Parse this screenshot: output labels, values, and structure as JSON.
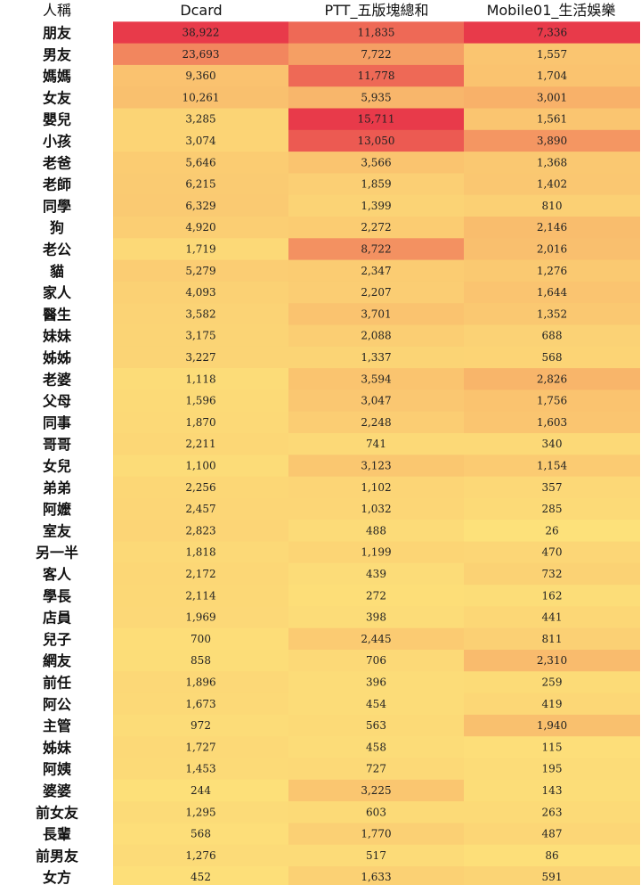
{
  "chart_data": {
    "type": "heatmap",
    "row_header": "人稱",
    "columns": [
      "Dcard",
      "PTT_五版塊總和",
      "Mobile01_生活娛樂"
    ],
    "rows": [
      "朋友",
      "男友",
      "媽媽",
      "女友",
      "嬰兒",
      "小孩",
      "老爸",
      "老師",
      "同學",
      "狗",
      "老公",
      "貓",
      "家人",
      "醫生",
      "妹妹",
      "姊姊",
      "老婆",
      "父母",
      "同事",
      "哥哥",
      "女兒",
      "弟弟",
      "阿嬤",
      "室友",
      "另一半",
      "客人",
      "學長",
      "店員",
      "兒子",
      "網友",
      "前任",
      "阿公",
      "主管",
      "姊妹",
      "阿姨",
      "婆婆",
      "前女友",
      "長輩",
      "前男友",
      "女方"
    ],
    "values": [
      [
        38922,
        11835,
        7336
      ],
      [
        23693,
        7722,
        1557
      ],
      [
        9360,
        11778,
        1704
      ],
      [
        10261,
        5935,
        3001
      ],
      [
        3285,
        15711,
        1561
      ],
      [
        3074,
        13050,
        3890
      ],
      [
        5646,
        3566,
        1368
      ],
      [
        6215,
        1859,
        1402
      ],
      [
        6329,
        1399,
        810
      ],
      [
        4920,
        2272,
        2146
      ],
      [
        1719,
        8722,
        2016
      ],
      [
        5279,
        2347,
        1276
      ],
      [
        4093,
        2207,
        1644
      ],
      [
        3582,
        3701,
        1352
      ],
      [
        3175,
        2088,
        688
      ],
      [
        3227,
        1337,
        568
      ],
      [
        1118,
        3594,
        2826
      ],
      [
        1596,
        3047,
        1756
      ],
      [
        1870,
        2248,
        1603
      ],
      [
        2211,
        741,
        340
      ],
      [
        1100,
        3123,
        1154
      ],
      [
        2256,
        1102,
        357
      ],
      [
        2457,
        1032,
        285
      ],
      [
        2823,
        488,
        26
      ],
      [
        1818,
        1199,
        470
      ],
      [
        2172,
        439,
        732
      ],
      [
        2114,
        272,
        162
      ],
      [
        1969,
        398,
        441
      ],
      [
        700,
        2445,
        811
      ],
      [
        858,
        706,
        2310
      ],
      [
        1896,
        396,
        259
      ],
      [
        1673,
        454,
        419
      ],
      [
        972,
        563,
        1940
      ],
      [
        1727,
        458,
        115
      ],
      [
        1453,
        727,
        195
      ],
      [
        244,
        3225,
        143
      ],
      [
        1295,
        603,
        263
      ],
      [
        568,
        1770,
        487
      ],
      [
        1276,
        517,
        86
      ],
      [
        452,
        1633,
        591
      ]
    ],
    "color_low": "#fde27a",
    "color_mid": "#f8b46a",
    "color_high": "#e83a4a",
    "color_scale": "per-column"
  }
}
